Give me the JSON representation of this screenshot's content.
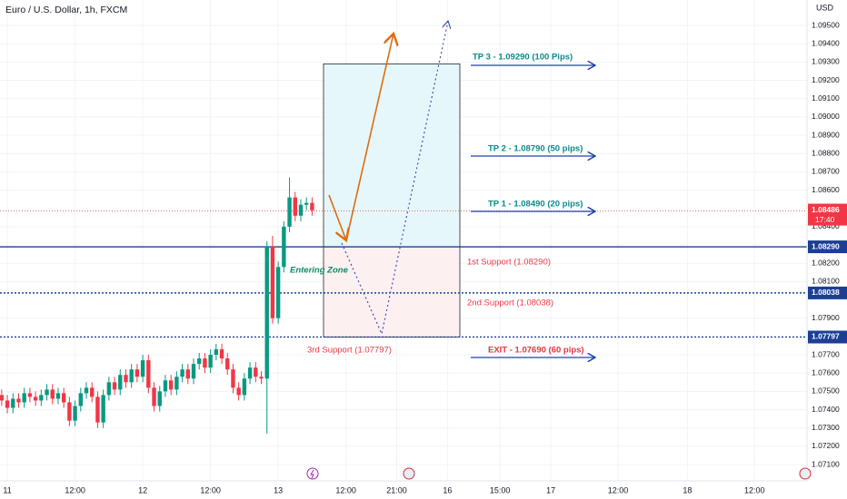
{
  "chart_data": {
    "type": "candlestick",
    "title": "Euro / U.S. Dollar, 1h, FXCM",
    "currency": "USD",
    "up_color": "#089981",
    "down_color": "#f23645",
    "x": [
      -1,
      0,
      1,
      2,
      3,
      4,
      5,
      6,
      7,
      8,
      9,
      10,
      11,
      12,
      13,
      14,
      15,
      16,
      17,
      18,
      19,
      20,
      21,
      22,
      23,
      24,
      25,
      26,
      27,
      28,
      29,
      30,
      31,
      32,
      33,
      34,
      35,
      36,
      37,
      38,
      39,
      40,
      41,
      42,
      43,
      44,
      45,
      46,
      47,
      48,
      49,
      50,
      51,
      52,
      53,
      54
    ],
    "open": [
      1.0748,
      1.0745,
      1.0741,
      1.0746,
      1.0744,
      1.0749,
      1.0747,
      1.0745,
      1.0748,
      1.0751,
      1.0746,
      1.0749,
      1.0744,
      1.0734,
      1.0742,
      1.0749,
      1.0752,
      1.0747,
      1.0733,
      1.0748,
      1.0755,
      1.0751,
      1.0759,
      1.0755,
      1.0762,
      1.0758,
      1.0767,
      1.0752,
      1.0742,
      1.075,
      1.0756,
      1.0751,
      1.0758,
      1.0762,
      1.0757,
      1.0765,
      1.0768,
      1.0763,
      1.077,
      1.0773,
      1.0768,
      1.0762,
      1.0752,
      1.0748,
      1.0757,
      1.0763,
      1.0758,
      1.0757,
      1.0829,
      1.079,
      1.0818,
      1.084,
      1.0856,
      1.0846,
      1.0852,
      1.0853
    ],
    "high": [
      1.0751,
      1.0748,
      1.0749,
      1.0749,
      1.0752,
      1.0752,
      1.075,
      1.0751,
      1.0754,
      1.0754,
      1.0752,
      1.0752,
      1.0747,
      1.0745,
      1.0752,
      1.0755,
      1.0755,
      1.075,
      1.0751,
      1.0758,
      1.0758,
      1.0762,
      1.0762,
      1.0765,
      1.0765,
      1.077,
      1.077,
      1.0755,
      1.0753,
      1.0759,
      1.0759,
      1.0761,
      1.0765,
      1.0765,
      1.0768,
      1.0771,
      1.0771,
      1.0773,
      1.0776,
      1.0776,
      1.0771,
      1.0765,
      1.0755,
      1.076,
      1.0766,
      1.0766,
      1.0761,
      1.0832,
      1.0835,
      1.0821,
      1.0843,
      1.0867,
      1.0859,
      1.0855,
      1.0856,
      1.0856
    ],
    "low": [
      1.0742,
      1.0738,
      1.0738,
      1.0741,
      1.0741,
      1.0744,
      1.0742,
      1.0742,
      1.0745,
      1.0743,
      1.0743,
      1.0741,
      1.0731,
      1.0731,
      1.0739,
      1.0746,
      1.0744,
      1.073,
      1.073,
      1.0745,
      1.0748,
      1.0748,
      1.0752,
      1.0752,
      1.0755,
      1.0755,
      1.0749,
      1.0739,
      1.0739,
      1.0747,
      1.0748,
      1.0748,
      1.0755,
      1.0754,
      1.0754,
      1.0762,
      1.076,
      1.076,
      1.0767,
      1.0765,
      1.0759,
      1.0749,
      1.0745,
      1.0745,
      1.0754,
      1.0755,
      1.0754,
      1.0727,
      1.0787,
      1.0787,
      1.0815,
      1.0837,
      1.0843,
      1.0843,
      1.0849,
      1.0846
    ],
    "close": [
      1.0745,
      1.0741,
      1.0746,
      1.0744,
      1.0749,
      1.0747,
      1.0745,
      1.0748,
      1.0751,
      1.0746,
      1.0749,
      1.0744,
      1.0734,
      1.0742,
      1.0749,
      1.0752,
      1.0747,
      1.0733,
      1.0748,
      1.0755,
      1.0751,
      1.0759,
      1.0755,
      1.0762,
      1.0758,
      1.0767,
      1.0752,
      1.0742,
      1.075,
      1.0756,
      1.0751,
      1.0758,
      1.0762,
      1.0757,
      1.0765,
      1.0768,
      1.0763,
      1.077,
      1.0773,
      1.0768,
      1.0762,
      1.0752,
      1.0748,
      1.0757,
      1.0763,
      1.0758,
      1.0757,
      1.0829,
      1.079,
      1.0818,
      1.084,
      1.0856,
      1.0846,
      1.0852,
      1.0853,
      1.0849
    ],
    "xlim": [
      -1.3,
      141.7
    ],
    "xticks": [
      {
        "value": 0,
        "label": "11"
      },
      {
        "value": 12,
        "label": "12:00"
      },
      {
        "value": 24,
        "label": "12"
      },
      {
        "value": 36,
        "label": "12:00"
      },
      {
        "value": 48,
        "label": "13"
      },
      {
        "value": 60,
        "label": "12:00"
      },
      {
        "value": 69,
        "label": "21:00"
      },
      {
        "value": 78,
        "label": "16"
      },
      {
        "value": 87.3,
        "label": "15:00"
      },
      {
        "value": 96.3,
        "label": "17"
      },
      {
        "value": 108.2,
        "label": "12:00"
      },
      {
        "value": 120.5,
        "label": "18"
      },
      {
        "value": 132.4,
        "label": "12:00"
      }
    ],
    "ylim": [
      1.07011,
      1.09639
    ],
    "yticks": [
      {
        "value": 1.071,
        "label": "1.07100"
      },
      {
        "value": 1.072,
        "label": "1.07200"
      },
      {
        "value": 1.073,
        "label": "1.07300"
      },
      {
        "value": 1.074,
        "label": "1.07400"
      },
      {
        "value": 1.075,
        "label": "1.07500"
      },
      {
        "value": 1.076,
        "label": "1.07600"
      },
      {
        "value": 1.077,
        "label": "1.07700"
      },
      {
        "value": 1.079,
        "label": "1.07900"
      },
      {
        "value": 1.081,
        "label": "1.08100"
      },
      {
        "value": 1.082,
        "label": "1.08200"
      },
      {
        "value": 1.084,
        "label": "1.08400"
      },
      {
        "value": 1.086,
        "label": "1.08600"
      },
      {
        "value": 1.087,
        "label": "1.08700"
      },
      {
        "value": 1.088,
        "label": "1.08800"
      },
      {
        "value": 1.089,
        "label": "1.08900"
      },
      {
        "value": 1.09,
        "label": "1.09000"
      },
      {
        "value": 1.091,
        "label": "1.09100"
      },
      {
        "value": 1.092,
        "label": "1.09200"
      },
      {
        "value": 1.093,
        "label": "1.09300"
      },
      {
        "value": 1.094,
        "label": "1.09400"
      },
      {
        "value": 1.095,
        "label": "1.09500"
      }
    ],
    "grid": true,
    "levels": [
      {
        "value": 1.0829,
        "label": "1.08290",
        "style": "solid"
      },
      {
        "value": 1.08038,
        "label": "1.08038",
        "style": "dotted"
      },
      {
        "value": 1.07797,
        "label": "1.07797",
        "style": "dotted"
      }
    ],
    "level_color": "#1c3f94",
    "last_price": {
      "value": 1.08486,
      "label": "1.08486",
      "countdown": "17:40",
      "color": "#f23645"
    },
    "zone": {
      "top": 1.0929,
      "entry": 1.0829,
      "bottom": 1.07797
    },
    "annotations": {
      "tp3": "TP 3 - 1.09290 (100 Pips)",
      "tp2": "TP 2 - 1.08790 (50 pips)",
      "tp1": "TP 1 - 1.08490 (20 pips)",
      "exit": "EXIT - 1.07690 (60 pips)",
      "support1": "1st Support (1.08290)",
      "support2": "2nd Support (1.08038)",
      "support3": "3rd Support (1.07797)",
      "entering": "Entering Zone"
    }
  }
}
